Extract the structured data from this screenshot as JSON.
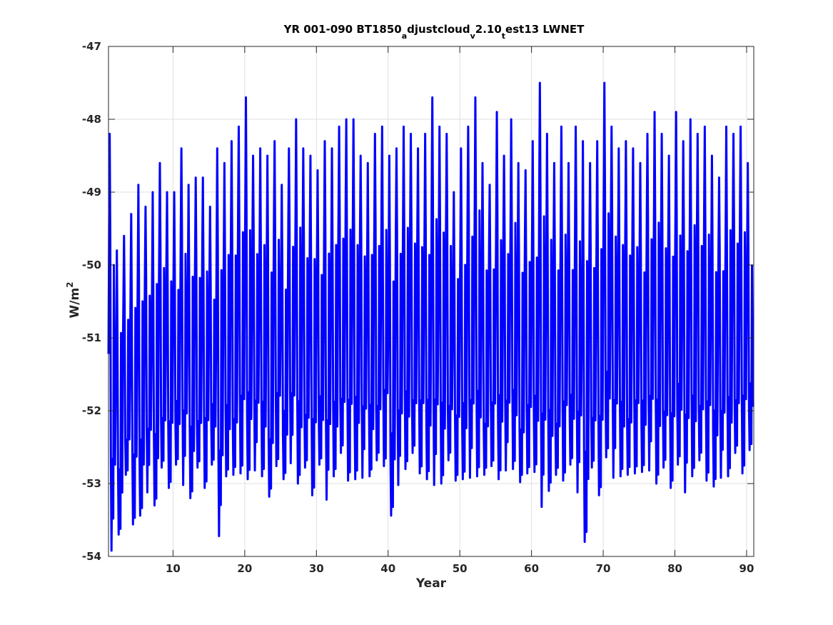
{
  "chart_data": {
    "type": "line",
    "title": "YR 001-090 BT1850",
    "title_parts": {
      "base": "YR 001-090 BT1850",
      "sub1": "a",
      "mid1": "djustcloud",
      "sub2": "v",
      "mid2": "2.10",
      "sub3": "t",
      "end": "est13 LWNET"
    },
    "xlabel": "Year",
    "ylabel": "W/m",
    "ylabel_sup": "2",
    "xlim": [
      1,
      91
    ],
    "ylim": [
      -54,
      -47
    ],
    "xticks": [
      10,
      20,
      30,
      40,
      50,
      60,
      70,
      80,
      90
    ],
    "yticks": [
      -54,
      -53,
      -52,
      -51,
      -50,
      -49,
      -48,
      -47
    ],
    "grid": true,
    "legend": "none",
    "series_color": "#0000ff",
    "series": [
      {
        "x_start": 1.0,
        "x_step": 0.0833333,
        "annual_cycle": [
          -51.1,
          -49.6,
          -48.2,
          -49.8,
          -52.7,
          -53.8,
          -52.9,
          -52.6,
          -53.6,
          -50.0,
          -51.9,
          -52.8
        ],
        "year_peak": [
          -48.2,
          -49.8,
          -49.6,
          -49.3,
          -48.9,
          -49.2,
          -49.0,
          -48.6,
          -49.0,
          -49.0,
          -48.4,
          -48.9,
          -48.8,
          -48.8,
          -49.2,
          -48.4,
          -48.6,
          -48.3,
          -48.1,
          -47.7,
          -48.5,
          -48.4,
          -48.5,
          -48.3,
          -48.9,
          -48.4,
          -48.0,
          -48.4,
          -48.5,
          -48.7,
          -48.3,
          -48.4,
          -48.1,
          -48.0,
          -48.0,
          -48.5,
          -48.6,
          -48.2,
          -48.1,
          -48.5,
          -48.4,
          -48.1,
          -48.2,
          -48.4,
          -48.2,
          -47.7,
          -48.1,
          -48.2,
          -49.0,
          -48.4,
          -48.1,
          -47.7,
          -48.6,
          -48.9,
          -47.9,
          -48.5,
          -48.0,
          -48.6,
          -48.7,
          -48.3,
          -47.5,
          -48.2,
          -48.6,
          -48.1,
          -48.6,
          -48.1,
          -48.3,
          -48.6,
          -48.3,
          -47.5,
          -48.1,
          -48.4,
          -48.3,
          -48.4,
          -48.6,
          -48.2,
          -47.9,
          -48.2,
          -48.5,
          -47.9,
          -48.3,
          -48.0,
          -48.2,
          -48.1,
          -48.5,
          -48.8,
          -48.1,
          -48.2,
          -48.1,
          -48.6
        ],
        "year_trough": [
          -53.8,
          -53.7,
          -53.0,
          -53.5,
          -53.5,
          -53.0,
          -53.3,
          -52.9,
          -53.0,
          -52.8,
          -52.9,
          -53.2,
          -52.9,
          -53.0,
          -52.8,
          -53.6,
          -52.9,
          -53.0,
          -52.8,
          -53.0,
          -52.7,
          -52.9,
          -53.3,
          -52.7,
          -53.0,
          -52.6,
          -53.0,
          -52.9,
          -53.1,
          -52.8,
          -53.1,
          -52.9,
          -52.7,
          -52.9,
          -53.0,
          -52.8,
          -52.9,
          -52.8,
          -52.7,
          -53.5,
          -52.9,
          -52.8,
          -52.7,
          -52.8,
          -53.0,
          -52.9,
          -53.0,
          -52.8,
          -52.9,
          -53.0,
          -52.8,
          -52.9,
          -53.0,
          -52.7,
          -53.0,
          -52.7,
          -52.8,
          -53.1,
          -52.8,
          -52.9,
          -53.2,
          -53.1,
          -53.0,
          -52.9,
          -52.8,
          -53.0,
          -53.8,
          -52.9,
          -53.1,
          -52.7,
          -52.8,
          -52.9,
          -53.0,
          -52.8,
          -52.9,
          -52.7,
          -53.0,
          -52.9,
          -53.0,
          -52.8,
          -53.0,
          -52.9,
          -52.8,
          -52.9,
          -53.1,
          -52.8,
          -52.9,
          -52.7,
          -52.8,
          -52.6
        ],
        "x_end": 91.0
      }
    ]
  }
}
